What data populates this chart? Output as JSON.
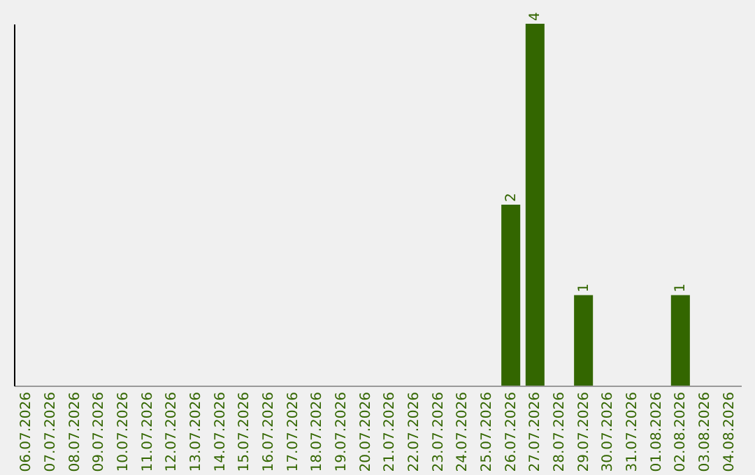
{
  "chart_data": {
    "type": "bar",
    "categories": [
      "06.07.2026",
      "07.07.2026",
      "08.07.2026",
      "09.07.2026",
      "10.07.2026",
      "11.07.2026",
      "12.07.2026",
      "13.07.2026",
      "14.07.2026",
      "15.07.2026",
      "16.07.2026",
      "17.07.2026",
      "18.07.2026",
      "19.07.2026",
      "20.07.2026",
      "21.07.2026",
      "22.07.2026",
      "23.07.2026",
      "24.07.2026",
      "25.07.2026",
      "26.07.2026",
      "27.07.2026",
      "28.07.2026",
      "29.07.2026",
      "30.07.2026",
      "31.07.2026",
      "01.08.2026",
      "02.08.2026",
      "03.08.2026",
      "04.08.2026"
    ],
    "values": [
      null,
      null,
      null,
      null,
      null,
      null,
      null,
      null,
      null,
      null,
      null,
      null,
      null,
      null,
      null,
      null,
      null,
      null,
      null,
      null,
      2,
      4,
      null,
      1,
      null,
      null,
      null,
      1,
      null,
      null
    ],
    "data_labels": true,
    "color": "#336600"
  }
}
